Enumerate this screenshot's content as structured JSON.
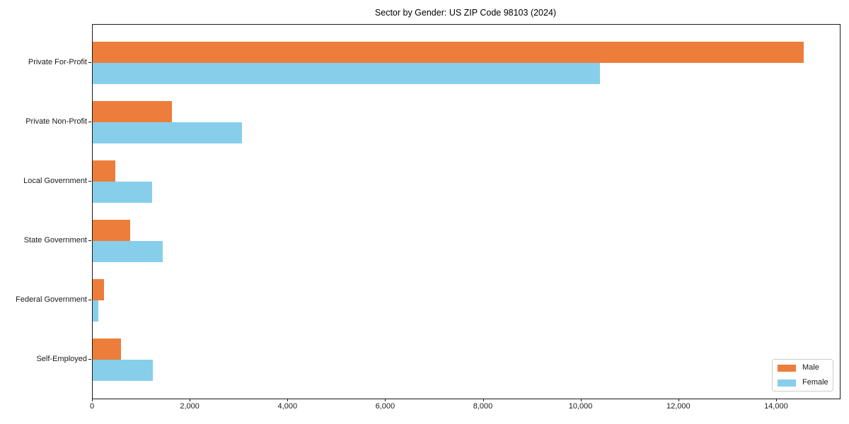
{
  "chart_data": {
    "type": "bar",
    "orientation": "horizontal",
    "title": "Sector by Gender: US ZIP Code 98103 (2024)",
    "categories": [
      "Private For-Profit",
      "Private Non-Profit",
      "Local Government",
      "State Government",
      "Federal Government",
      "Self-Employed"
    ],
    "series": [
      {
        "name": "Male",
        "color": "#ED7D3A",
        "values": [
          14550,
          1620,
          465,
          770,
          230,
          580
        ]
      },
      {
        "name": "Female",
        "color": "#87CEEB",
        "values": [
          10380,
          3060,
          1220,
          1435,
          115,
          1230
        ]
      }
    ],
    "xlabel": "",
    "ylabel": "",
    "xlim": [
      0,
      15290
    ],
    "xticks": [
      0,
      2000,
      4000,
      6000,
      8000,
      10000,
      12000,
      14000
    ],
    "xtick_labels": [
      "0",
      "2,000",
      "4,000",
      "6,000",
      "8,000",
      "10,000",
      "12,000",
      "14,000"
    ],
    "grid": false,
    "bar_height_fraction": 0.35,
    "legend_position": "lower right"
  }
}
